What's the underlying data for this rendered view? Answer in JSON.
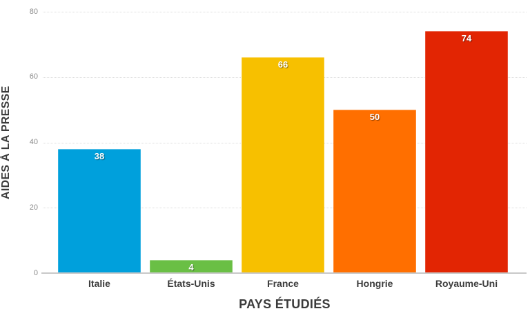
{
  "chart_data": {
    "type": "bar",
    "categories": [
      "Italie",
      "États-Unis",
      "France",
      "Hongrie",
      "Royaume-Uni"
    ],
    "values": [
      38,
      4,
      66,
      50,
      74
    ],
    "bar_colors": [
      "#00A0DC",
      "#6ABF45",
      "#F7C000",
      "#FF6F00",
      "#E22503"
    ],
    "title": "",
    "xlabel": "PAYS ÉTUDIÉS",
    "ylabel": "AIDES À LA PRESSE",
    "ylim": [
      0,
      80
    ],
    "yticks": [
      0,
      20,
      40,
      60,
      80
    ],
    "grid": "horizontal dotted gridlines, solid baseline at zero",
    "legend": "none",
    "value_labels": "white bold numbers inside top of each bar"
  },
  "theme": {
    "background": "#FFFFFF",
    "axis_title_color": "#3B3B3B",
    "category_label_color": "#3C3C3C",
    "tick_label_color": "#8B8B8B",
    "gridline_color": "#DBDBDB",
    "baseline_color": "#C8C8C8",
    "value_label_color": "#FFFFFF"
  }
}
